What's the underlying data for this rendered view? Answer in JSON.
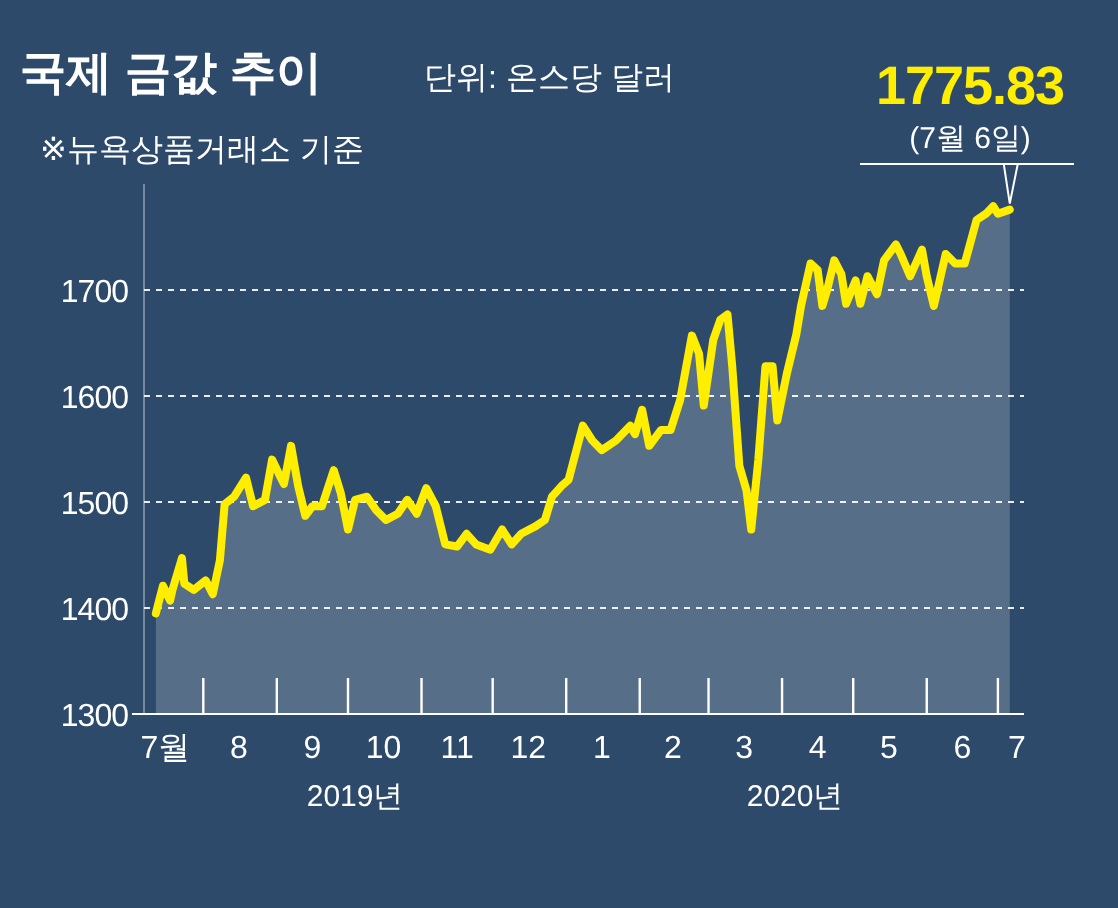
{
  "chart_data": {
    "type": "area",
    "title": "국제 금값 추이",
    "subtitle": "단위: 온스당 달러",
    "annotations": [
      "※뉴욕상품거래소 기준",
      {
        "text": "1775.83",
        "x": "2020-07-06",
        "y": 1775.83
      },
      "(7월 6일)",
      "2019년",
      "2020년"
    ],
    "x": [
      "2019-07-12",
      "2019-07-15",
      "2019-07-18",
      "2019-07-19",
      "2019-07-23",
      "2019-07-24",
      "2019-07-28",
      "2019-08-02",
      "2019-08-05",
      "2019-08-08",
      "2019-08-10",
      "2019-08-14",
      "2019-08-19",
      "2019-08-22",
      "2019-08-27",
      "2019-08-30",
      "2019-09-02",
      "2019-09-04",
      "2019-09-07",
      "2019-09-10",
      "2019-09-13",
      "2019-09-16",
      "2019-09-20",
      "2019-09-25",
      "2019-09-28",
      "2019-10-01",
      "2019-10-04",
      "2019-10-09",
      "2019-10-13",
      "2019-10-17",
      "2019-10-22",
      "2019-10-26",
      "2019-10-30",
      "2019-11-03",
      "2019-11-07",
      "2019-11-11",
      "2019-11-16",
      "2019-11-20",
      "2019-11-24",
      "2019-11-30",
      "2019-12-05",
      "2019-12-09",
      "2019-12-13",
      "2019-12-19",
      "2019-12-23",
      "2019-12-26",
      "2019-12-30",
      "2020-01-02",
      "2020-01-08",
      "2020-01-12",
      "2020-01-16",
      "2020-01-22",
      "2020-01-28",
      "2020-01-30",
      "2020-02-02",
      "2020-02-05",
      "2020-02-10",
      "2020-02-14",
      "2020-02-18",
      "2020-02-23",
      "2020-02-26",
      "2020-02-28",
      "2020-03-03",
      "2020-03-06",
      "2020-03-09",
      "2020-03-11",
      "2020-03-14",
      "2020-03-17",
      "2020-03-19",
      "2020-03-22",
      "2020-03-25",
      "2020-03-28",
      "2020-03-30",
      "2020-04-03",
      "2020-04-07",
      "2020-04-09",
      "2020-04-13",
      "2020-04-16",
      "2020-04-18",
      "2020-04-20",
      "2020-04-23",
      "2020-04-26",
      "2020-04-28",
      "2020-05-02",
      "2020-05-04",
      "2020-05-07",
      "2020-05-11",
      "2020-05-14",
      "2020-05-19",
      "2020-05-21",
      "2020-05-25",
      "2020-05-30",
      "2020-06-01",
      "2020-06-04",
      "2020-06-09",
      "2020-06-13",
      "2020-06-17",
      "2020-06-22",
      "2020-06-26",
      "2020-06-29",
      "2020-07-01",
      "2020-07-06"
    ],
    "series": [
      {
        "color": "#ffee00",
        "values": [
          1395,
          1421,
          1407,
          1417,
          1447,
          1423,
          1417,
          1426,
          1413,
          1445,
          1498,
          1505,
          1523,
          1496,
          1502,
          1540,
          1526,
          1517,
          1553,
          1515,
          1487,
          1496,
          1496,
          1530,
          1508,
          1474,
          1502,
          1505,
          1492,
          1483,
          1489,
          1502,
          1489,
          1513,
          1496,
          1460,
          1458,
          1470,
          1460,
          1455,
          1474,
          1460,
          1470,
          1477,
          1483,
          1505,
          1515,
          1521,
          1572,
          1558,
          1549,
          1558,
          1572,
          1564,
          1587,
          1553,
          1568,
          1568,
          1596,
          1657,
          1640,
          1591,
          1653,
          1672,
          1677,
          1628,
          1534,
          1511,
          1474,
          1540,
          1628,
          1628,
          1577,
          1621,
          1658,
          1685,
          1725,
          1719,
          1685,
          1700,
          1728,
          1715,
          1687,
          1709,
          1687,
          1713,
          1696,
          1728,
          1743,
          1734,
          1713,
          1738,
          1713,
          1685,
          1734,
          1725,
          1725,
          1766,
          1772,
          1779,
          1772,
          1775.83
        ]
      }
    ],
    "xlim": [
      "2019-07-07",
      "2020-07-12"
    ],
    "xticks": [
      {
        "value": "2019-07-16",
        "label": "7월"
      },
      {
        "value": "2019-08-16",
        "label": "8"
      },
      {
        "value": "2019-09-16",
        "label": "9"
      },
      {
        "value": "2019-10-16",
        "label": "10"
      },
      {
        "value": "2019-11-16",
        "label": "11"
      },
      {
        "value": "2019-12-16",
        "label": "12"
      },
      {
        "value": "2020-01-16",
        "label": "1"
      },
      {
        "value": "2020-02-15",
        "label": "2"
      },
      {
        "value": "2020-03-16",
        "label": "3"
      },
      {
        "value": "2020-04-16",
        "label": "4"
      },
      {
        "value": "2020-05-16",
        "label": "5"
      },
      {
        "value": "2020-06-16",
        "label": "6"
      },
      {
        "value": "2020-07-09",
        "label": "7"
      }
    ],
    "ylim": [
      1300,
      1800
    ],
    "yticks": [
      1300,
      1400,
      1500,
      1600,
      1700
    ],
    "grid": "y",
    "marker": "none",
    "line_style": "solid"
  }
}
